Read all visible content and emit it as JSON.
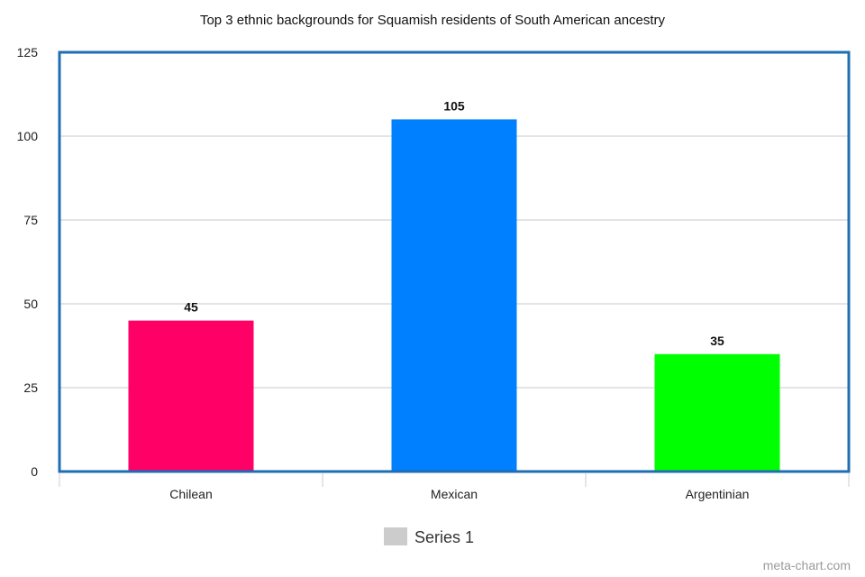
{
  "chart_data": {
    "type": "bar",
    "title": "Top 3 ethnic backgrounds for Squamish residents of South American ancestry",
    "xlabel": "",
    "ylabel": "",
    "categories": [
      "Chilean",
      "Mexican",
      "Argentinian"
    ],
    "series": [
      {
        "name": "Series 1",
        "values": [
          45,
          105,
          35
        ]
      }
    ],
    "bar_colors": [
      "#ff0066",
      "#0080ff",
      "#00ff00"
    ],
    "ylim": [
      0,
      125
    ],
    "yticks": [
      0,
      25,
      50,
      75,
      100,
      125
    ],
    "grid": true,
    "data_labels": true,
    "legend": "bottom",
    "legend_swatch_color": "#cccccc",
    "frame_color": "#1f6db3"
  },
  "credit": "meta-chart.com"
}
